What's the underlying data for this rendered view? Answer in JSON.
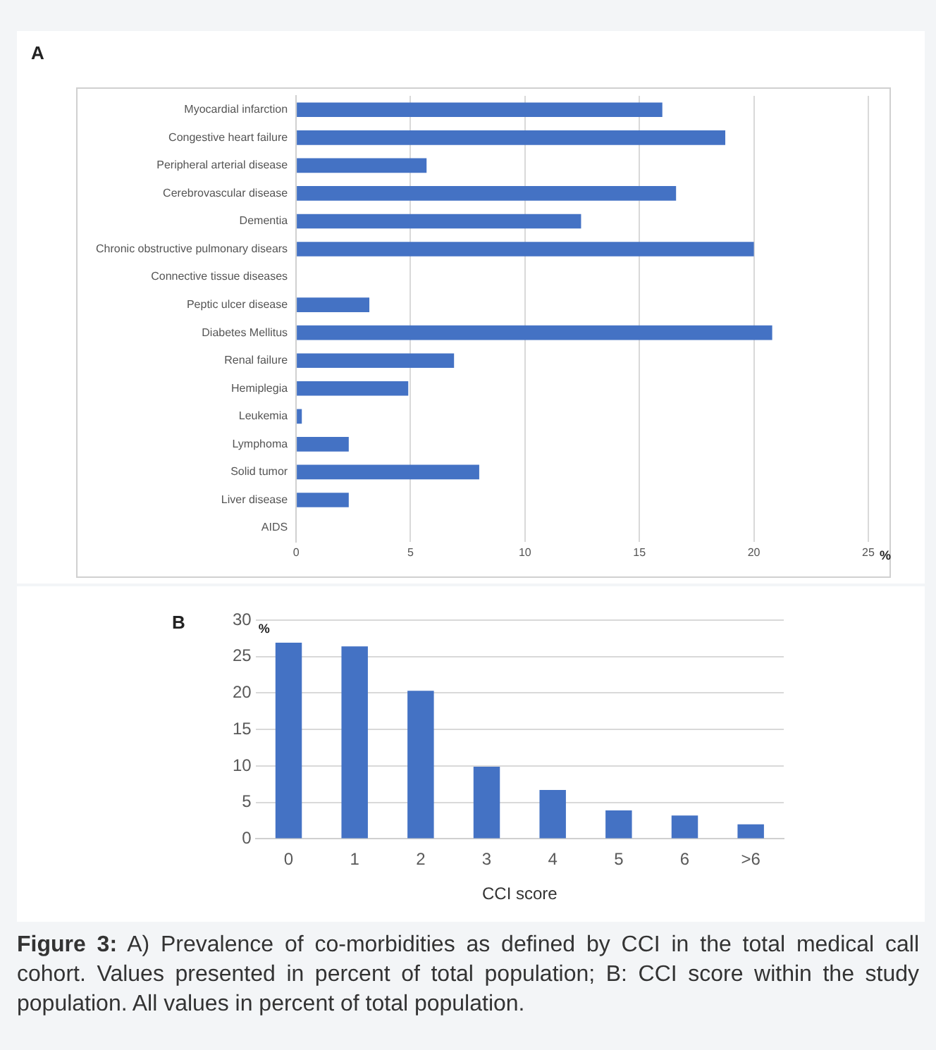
{
  "chart_data": [
    {
      "type": "bar",
      "title": "A",
      "orientation": "horizontal",
      "xlabel": "%",
      "categories": [
        "Myocardial infarction",
        "Congestive heart failure",
        "Peripheral arterial disease",
        "Cerebrovascular disease",
        "Dementia",
        "Chronic obstructive pulmonary disears",
        "Connective tissue diseases",
        "Peptic ulcer disease",
        "Diabetes Mellitus",
        "Renal failure",
        "Hemiplegia",
        "Leukemia",
        "Lymphoma",
        "Solid tumor",
        "Liver disease",
        "AIDS"
      ],
      "values": [
        16.0,
        18.75,
        5.7,
        16.6,
        12.45,
        20.0,
        0,
        3.2,
        20.8,
        6.9,
        4.9,
        0.25,
        2.3,
        8.0,
        2.3,
        0
      ],
      "color": "#4472c4",
      "xlim": [
        0,
        25
      ],
      "xticks": [
        0,
        5,
        10,
        15,
        20,
        25
      ],
      "grid": "x"
    },
    {
      "type": "bar",
      "title": "B",
      "xlabel": "CCI score",
      "ylabel": "%",
      "categories": [
        "0",
        "1",
        "2",
        "3",
        "4",
        "5",
        "6",
        ">6"
      ],
      "values": [
        26.9,
        26.4,
        20.3,
        9.9,
        6.7,
        3.9,
        3.2,
        2.0
      ],
      "color": "#4472c4",
      "ylim": [
        0,
        30
      ],
      "yticks": [
        0,
        5,
        10,
        15,
        20,
        25,
        30
      ],
      "grid": "y",
      "annotations": [
        "Figure 3: A) Prevalence of co-morbidities as defined by CCI in the total medical call cohort. Values presented in percent of total population; B: CCI score within the study population. All values in percent of total population."
      ]
    }
  ]
}
